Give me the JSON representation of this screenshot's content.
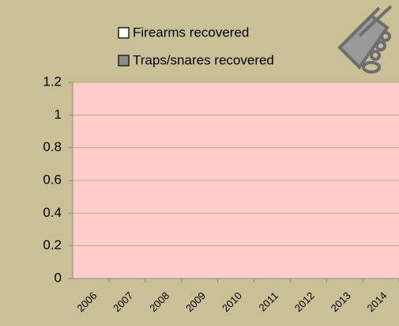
{
  "chart_data": {
    "type": "bar",
    "categories": [
      "2006",
      "2007",
      "2008",
      "2009",
      "2010",
      "2011",
      "2012",
      "2013",
      "2014"
    ],
    "series": [
      {
        "name": "Firearms recovered",
        "color": "#ffffff",
        "values": [
          0,
          0,
          0,
          0,
          0,
          0,
          0,
          0,
          0
        ]
      },
      {
        "name": "Traps/snares recovered",
        "color": "#8c8c8c",
        "values": [
          0,
          0,
          0,
          0,
          0,
          0,
          0,
          0,
          0
        ]
      }
    ],
    "ylim": [
      0,
      1.2
    ],
    "yticks": [
      0,
      0.2,
      0.4,
      0.6,
      0.8,
      1,
      1.2
    ],
    "grid": true,
    "plot_color": "#ffcccc",
    "grid_color": "#b5aa80"
  }
}
